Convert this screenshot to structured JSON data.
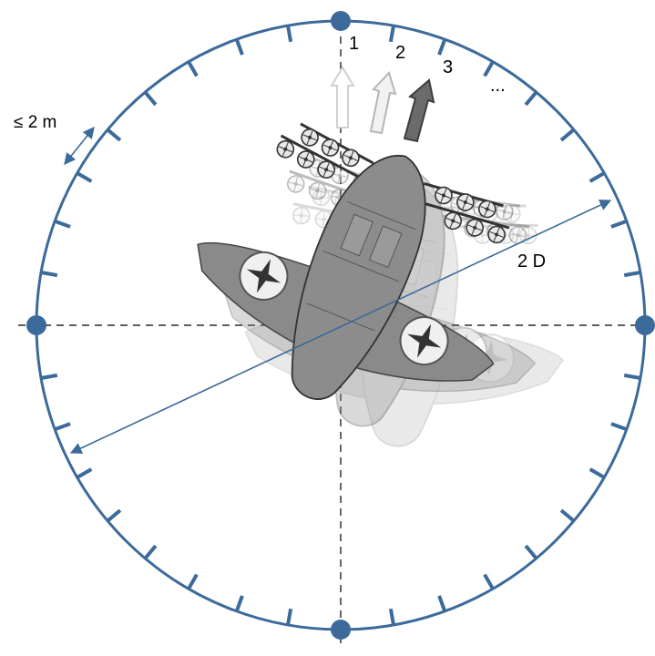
{
  "labels": {
    "marker_1": "1",
    "marker_2": "2",
    "marker_3": "3",
    "marker_more": "...",
    "spacing": "≤ 2 m",
    "diameter": "2 D"
  },
  "colors": {
    "ring": "#3c6a9a",
    "axis": "#000000",
    "aircraft": "#7f7f7f",
    "arrow_current": "#6b6b6b"
  },
  "icons": {
    "aircraft": "vtol-aircraft-icon",
    "heading_arrow": "heading-arrow-icon",
    "node": "circle-node-icon"
  },
  "ring": {
    "tick_count": 36
  }
}
